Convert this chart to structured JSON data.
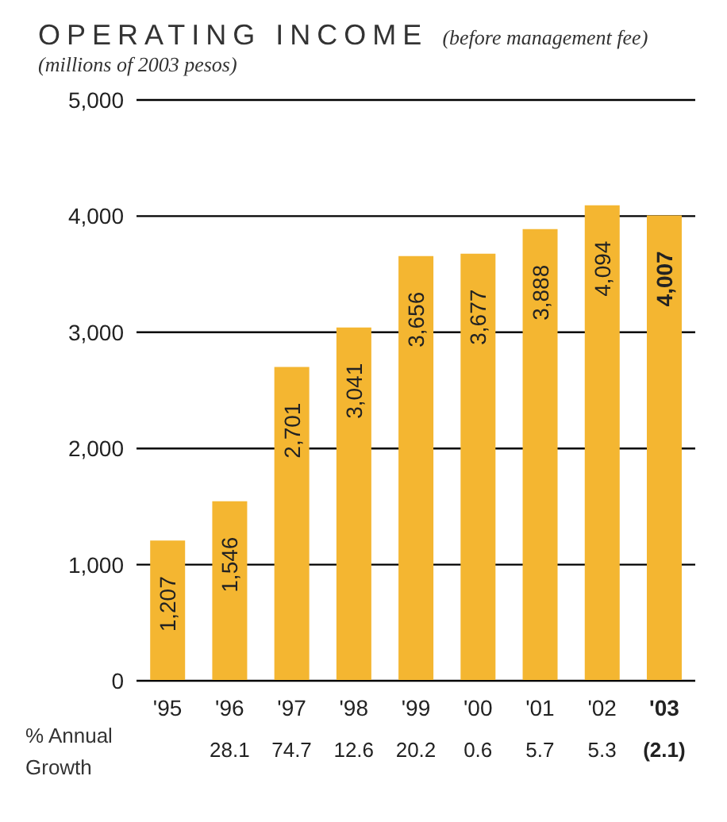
{
  "chart_data": {
    "type": "bar",
    "title": "OPERATING INCOME (before management fee)",
    "subtitle": "(millions of 2003 pesos)",
    "categories": [
      "'95",
      "'96",
      "'97",
      "'98",
      "'99",
      "'00",
      "'01",
      "'02",
      "'03"
    ],
    "values": [
      1207,
      1546,
      2701,
      3041,
      3656,
      3677,
      3888,
      4094,
      4007
    ],
    "value_labels": [
      "1,207",
      "1,546",
      "2,701",
      "3,041",
      "3,656",
      "3,677",
      "3,888",
      "4,094",
      "4,007"
    ],
    "color": "#f4b631",
    "ylim": [
      0,
      5000
    ],
    "yticks": [
      0,
      {
        "value": 1000,
        "label": "1,000"
      },
      {
        "value": 2000,
        "label": "2,000"
      },
      {
        "value": 3000,
        "label": "3,000"
      },
      {
        "value": 4000,
        "label": "4,000"
      },
      {
        "value": 5000,
        "label": "5,000"
      }
    ],
    "grid": "y",
    "annotations": [
      "% Annual Growth",
      "28.1",
      "74.7",
      "12.6",
      "20.2",
      "0.6",
      "5.7",
      "5.3",
      "(2.1)"
    ]
  }
}
